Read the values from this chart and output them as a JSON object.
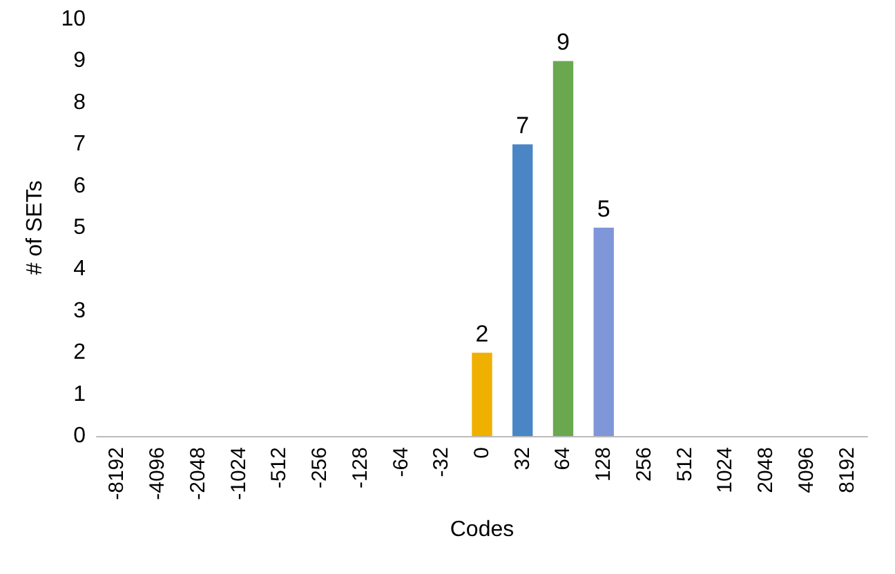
{
  "chart_data": {
    "type": "bar",
    "xlabel": "Codes",
    "ylabel": "# of SETs",
    "categories": [
      "-8192",
      "-4096",
      "-2048",
      "-1024",
      "-512",
      "-256",
      "-128",
      "-64",
      "-32",
      "0",
      "32",
      "64",
      "128",
      "256",
      "512",
      "1024",
      "2048",
      "4096",
      "8192"
    ],
    "values": [
      0,
      0,
      0,
      0,
      0,
      0,
      0,
      0,
      0,
      2,
      7,
      9,
      5,
      0,
      0,
      0,
      0,
      0,
      0
    ],
    "colors": [
      "#4a86c5",
      "#4a86c5",
      "#4a86c5",
      "#4a86c5",
      "#4a86c5",
      "#4a86c5",
      "#4a86c5",
      "#4a86c5",
      "#4a86c5",
      "#f0b000",
      "#4a86c5",
      "#6aa84f",
      "#7f96d8",
      "#4a86c5",
      "#4a86c5",
      "#4a86c5",
      "#4a86c5",
      "#4a86c5",
      "#4a86c5"
    ],
    "value_labels": [
      null,
      null,
      null,
      null,
      null,
      null,
      null,
      null,
      null,
      "2",
      "7",
      "9",
      "5",
      null,
      null,
      null,
      null,
      null,
      null
    ],
    "ylim": [
      0,
      10
    ],
    "yticks": [
      0,
      1,
      2,
      3,
      4,
      5,
      6,
      7,
      8,
      9,
      10
    ]
  }
}
